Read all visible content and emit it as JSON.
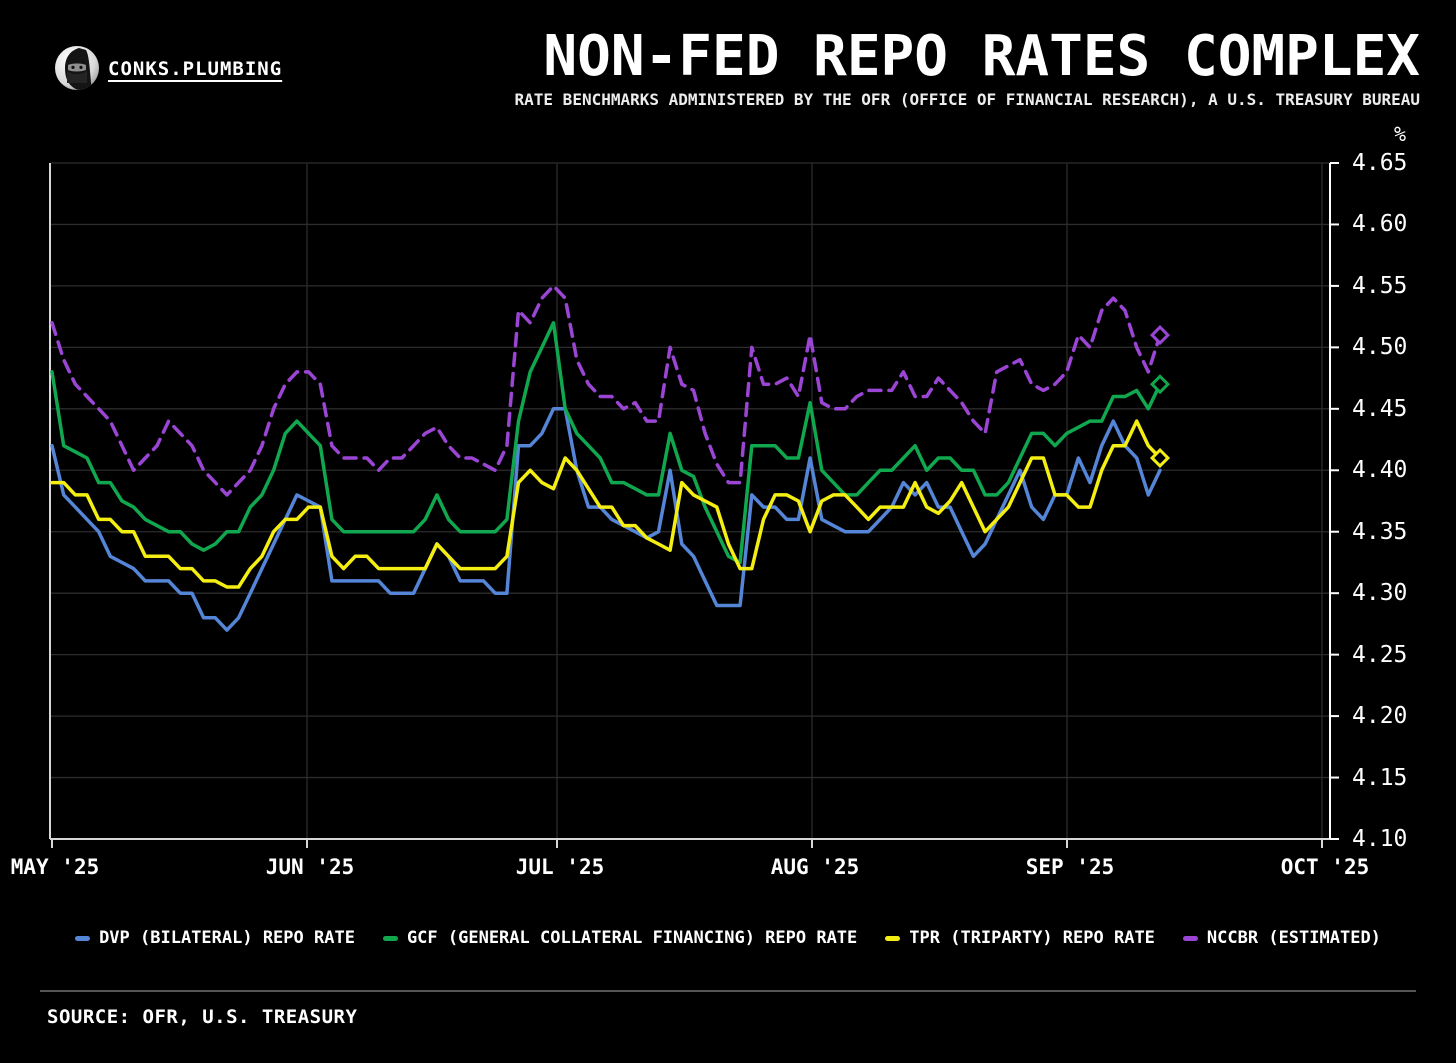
{
  "header": {
    "brand": "CONKS.PLUMBING",
    "title": "NON-FED REPO RATES COMPLEX",
    "subtitle": "RATE BENCHMARKS ADMINISTERED BY THE OFR (OFFICE OF FINANCIAL RESEARCH), A U.S. TREASURY BUREAU"
  },
  "footer": {
    "source": "SOURCE: OFR, U.S. TREASURY"
  },
  "chart_data": {
    "type": "line",
    "title": "NON-FED REPO RATES COMPLEX",
    "unit": "%",
    "background": "#000000",
    "grid": true,
    "legend_position": "bottom",
    "ylim": [
      4.1,
      4.65
    ],
    "ytick_step": 0.05,
    "y_ticklabels": [
      "4.65",
      "4.60",
      "4.55",
      "4.50",
      "4.45",
      "4.40",
      "4.35",
      "4.30",
      "4.25",
      "4.20",
      "4.15",
      "4.10"
    ],
    "x_ticklabels": [
      "MAY '25",
      "JUN '25",
      "JUL '25",
      "AUG '25",
      "SEP '25",
      "OCT '25"
    ],
    "end_marker": "diamond",
    "series": [
      {
        "name": "DVP (BILATERAL) REPO RATE",
        "color": "#5585d6",
        "style": "solid",
        "marker": false,
        "values": [
          4.42,
          4.38,
          4.37,
          4.36,
          4.35,
          4.33,
          4.325,
          4.32,
          4.31,
          4.31,
          4.31,
          4.3,
          4.3,
          4.28,
          4.28,
          4.27,
          4.28,
          4.3,
          4.32,
          4.34,
          4.36,
          4.38,
          4.375,
          4.37,
          4.31,
          4.31,
          4.31,
          4.31,
          4.31,
          4.3,
          4.3,
          4.3,
          4.32,
          4.34,
          4.33,
          4.31,
          4.31,
          4.31,
          4.3,
          4.3,
          4.42,
          4.42,
          4.43,
          4.45,
          4.45,
          4.4,
          4.37,
          4.37,
          4.36,
          4.355,
          4.35,
          4.345,
          4.35,
          4.4,
          4.34,
          4.33,
          4.31,
          4.29,
          4.29,
          4.29,
          4.38,
          4.37,
          4.37,
          4.36,
          4.36,
          4.41,
          4.36,
          4.355,
          4.35,
          4.35,
          4.35,
          4.36,
          4.37,
          4.39,
          4.38,
          4.39,
          4.37,
          4.37,
          4.35,
          4.33,
          4.34,
          4.36,
          4.38,
          4.4,
          4.37,
          4.36,
          4.38,
          4.38,
          4.41,
          4.39,
          4.42,
          4.44,
          4.42,
          4.41,
          4.38,
          4.4
        ]
      },
      {
        "name": "GCF (GENERAL COLLATERAL FINANCING) REPO RATE",
        "color": "#10a74f",
        "style": "solid",
        "marker": true,
        "values": [
          4.48,
          4.42,
          4.415,
          4.41,
          4.39,
          4.39,
          4.375,
          4.37,
          4.36,
          4.355,
          4.35,
          4.35,
          4.34,
          4.335,
          4.34,
          4.35,
          4.35,
          4.37,
          4.38,
          4.4,
          4.43,
          4.44,
          4.43,
          4.42,
          4.36,
          4.35,
          4.35,
          4.35,
          4.35,
          4.35,
          4.35,
          4.35,
          4.36,
          4.38,
          4.36,
          4.35,
          4.35,
          4.35,
          4.35,
          4.36,
          4.44,
          4.48,
          4.5,
          4.52,
          4.45,
          4.43,
          4.42,
          4.41,
          4.39,
          4.39,
          4.385,
          4.38,
          4.38,
          4.43,
          4.4,
          4.395,
          4.37,
          4.35,
          4.33,
          4.325,
          4.42,
          4.42,
          4.42,
          4.41,
          4.41,
          4.455,
          4.4,
          4.39,
          4.38,
          4.38,
          4.39,
          4.4,
          4.4,
          4.41,
          4.42,
          4.4,
          4.41,
          4.41,
          4.4,
          4.4,
          4.38,
          4.38,
          4.39,
          4.41,
          4.43,
          4.43,
          4.42,
          4.43,
          4.435,
          4.44,
          4.44,
          4.46,
          4.46,
          4.465,
          4.45,
          4.47
        ]
      },
      {
        "name": "TPR (TRIPARTY) REPO RATE",
        "color": "#f4ee12",
        "style": "solid",
        "marker": true,
        "values": [
          4.39,
          4.39,
          4.38,
          4.38,
          4.36,
          4.36,
          4.35,
          4.35,
          4.33,
          4.33,
          4.33,
          4.32,
          4.32,
          4.31,
          4.31,
          4.305,
          4.305,
          4.32,
          4.33,
          4.35,
          4.36,
          4.36,
          4.37,
          4.37,
          4.33,
          4.32,
          4.33,
          4.33,
          4.32,
          4.32,
          4.32,
          4.32,
          4.32,
          4.34,
          4.33,
          4.32,
          4.32,
          4.32,
          4.32,
          4.33,
          4.39,
          4.4,
          4.39,
          4.385,
          4.41,
          4.4,
          4.385,
          4.37,
          4.37,
          4.355,
          4.355,
          4.345,
          4.34,
          4.335,
          4.39,
          4.38,
          4.375,
          4.37,
          4.34,
          4.32,
          4.32,
          4.36,
          4.38,
          4.38,
          4.375,
          4.35,
          4.375,
          4.38,
          4.38,
          4.37,
          4.36,
          4.37,
          4.37,
          4.37,
          4.39,
          4.37,
          4.365,
          4.375,
          4.39,
          4.37,
          4.35,
          4.36,
          4.37,
          4.39,
          4.41,
          4.41,
          4.38,
          4.38,
          4.37,
          4.37,
          4.4,
          4.42,
          4.42,
          4.44,
          4.42,
          4.41
        ]
      },
      {
        "name": "NCCBR (ESTIMATED)",
        "color": "#9b45d4",
        "style": "dashed",
        "marker": true,
        "values": [
          4.52,
          4.49,
          4.47,
          4.46,
          4.45,
          4.44,
          4.42,
          4.4,
          4.41,
          4.42,
          4.44,
          4.43,
          4.42,
          4.4,
          4.39,
          4.38,
          4.39,
          4.4,
          4.42,
          4.45,
          4.47,
          4.48,
          4.48,
          4.47,
          4.42,
          4.41,
          4.41,
          4.41,
          4.4,
          4.41,
          4.41,
          4.42,
          4.43,
          4.435,
          4.42,
          4.41,
          4.41,
          4.405,
          4.4,
          4.42,
          4.53,
          4.52,
          4.54,
          4.55,
          4.54,
          4.49,
          4.47,
          4.46,
          4.46,
          4.45,
          4.455,
          4.44,
          4.44,
          4.5,
          4.47,
          4.465,
          4.43,
          4.405,
          4.39,
          4.39,
          4.5,
          4.47,
          4.47,
          4.475,
          4.46,
          4.51,
          4.455,
          4.45,
          4.45,
          4.46,
          4.465,
          4.465,
          4.465,
          4.48,
          4.46,
          4.46,
          4.475,
          4.465,
          4.455,
          4.44,
          4.43,
          4.48,
          4.485,
          4.49,
          4.47,
          4.465,
          4.47,
          4.48,
          4.51,
          4.5,
          4.53,
          4.54,
          4.53,
          4.5,
          4.48,
          4.51
        ]
      }
    ]
  }
}
